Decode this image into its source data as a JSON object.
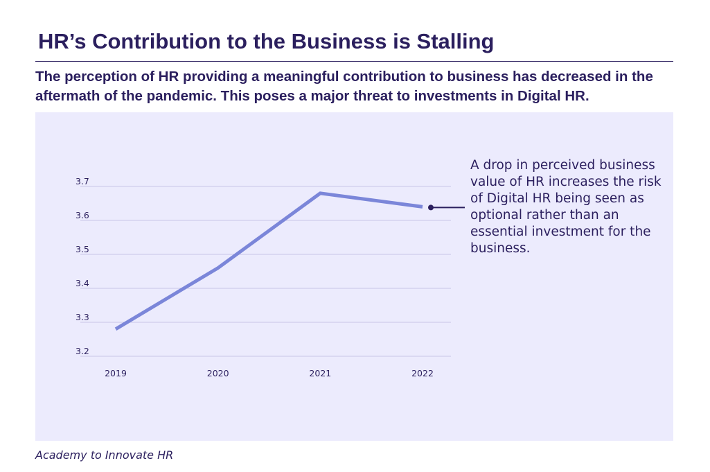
{
  "header": {
    "title": "HR’s Contribution to the Business is Stalling",
    "subtitle": "The perception of HR providing a meaningful contribution to business has decreased in the aftermath of the pandemic. This poses a major threat to investments in Digital HR."
  },
  "annotation": {
    "text": "A drop in perceived business value of HR increases the risk of Digital HR being seen as optional rather than an essential investment for the business."
  },
  "source": "Academy to Innovate HR",
  "colors": {
    "line": "#7b86d9",
    "panel": "#ecebfd",
    "text": "#2b1f5e",
    "grid": "#c9c6e6"
  },
  "chart_data": {
    "type": "line",
    "categories": [
      "2019",
      "2020",
      "2021",
      "2022"
    ],
    "series": [
      {
        "values": [
          3.28,
          3.46,
          3.68,
          3.64
        ]
      }
    ],
    "ylim": [
      3.2,
      3.7
    ],
    "yticks": [
      "3.2",
      "3.3",
      "3.4",
      "3.5",
      "3.6",
      "3.7"
    ],
    "grid": true,
    "legend": "none"
  }
}
